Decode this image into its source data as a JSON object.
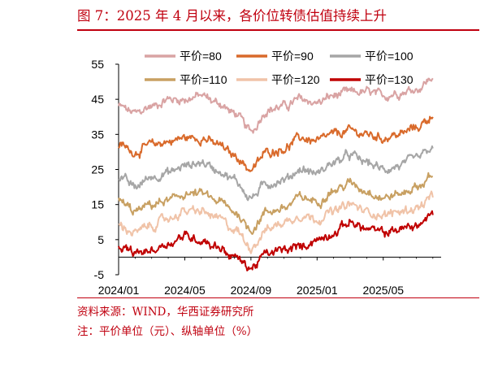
{
  "figure": {
    "title": "图 7：2025 年 4 月以来，各价位转债估值持续上升",
    "source": "资料来源：WIND，华西证券研究所",
    "note": "注：平价单位（元）、纵轴单位（%）"
  },
  "chart_data": {
    "type": "line",
    "title": "",
    "xlabel": "",
    "ylabel": "",
    "ylim": [
      -5,
      55
    ],
    "yticks": [
      -5,
      5,
      15,
      25,
      35,
      45,
      55
    ],
    "x_start": "2024-01",
    "x_end": "2025-08",
    "xtick_labels": [
      "2024/01",
      "2024/05",
      "2024/09",
      "2025/01",
      "2025/05"
    ],
    "grid": false,
    "legend": "top",
    "x": [
      "2024-01",
      "2024-02",
      "2024-03",
      "2024-04",
      "2024-05",
      "2024-06",
      "2024-07",
      "2024-08",
      "2024-09",
      "2024-10",
      "2024-11",
      "2024-12",
      "2025-01",
      "2025-02",
      "2025-03",
      "2025-04",
      "2025-05",
      "2025-06",
      "2025-07",
      "2025-08"
    ],
    "series": [
      {
        "name": "平价=80",
        "color": "#d9a3a3",
        "values": [
          43,
          41,
          43,
          45,
          45,
          46,
          44,
          41,
          36,
          42,
          43,
          45,
          44,
          46,
          47,
          47,
          46,
          47,
          48,
          51
        ]
      },
      {
        "name": "平价=90",
        "color": "#d96a2b",
        "values": [
          32,
          30,
          32,
          33,
          34,
          34,
          32,
          29,
          25,
          30,
          31,
          34,
          33,
          35,
          36,
          35,
          34,
          35,
          37,
          40
        ]
      },
      {
        "name": "平价=100",
        "color": "#a6a6a6",
        "values": [
          23,
          20,
          23,
          24,
          26,
          27,
          25,
          22,
          17,
          21,
          22,
          25,
          24,
          27,
          29,
          27,
          25,
          26,
          28,
          31
        ]
      },
      {
        "name": "平价=110",
        "color": "#c8a062",
        "values": [
          16,
          13,
          15,
          16,
          18,
          18,
          16,
          13,
          8,
          13,
          14,
          17,
          16,
          19,
          21,
          19,
          17,
          18,
          20,
          23
        ]
      },
      {
        "name": "平价=120",
        "color": "#f0c3a8",
        "values": [
          9,
          7,
          9,
          11,
          13,
          13,
          11,
          8,
          3,
          8,
          10,
          12,
          11,
          13,
          15,
          13,
          12,
          13,
          14,
          17
        ]
      },
      {
        "name": "平价=130",
        "color": "#c00000",
        "values": [
          3,
          1,
          2,
          4,
          6,
          5,
          3,
          0,
          -3,
          1,
          2,
          3,
          5,
          7,
          10,
          8,
          7,
          8,
          9,
          12
        ]
      }
    ]
  }
}
